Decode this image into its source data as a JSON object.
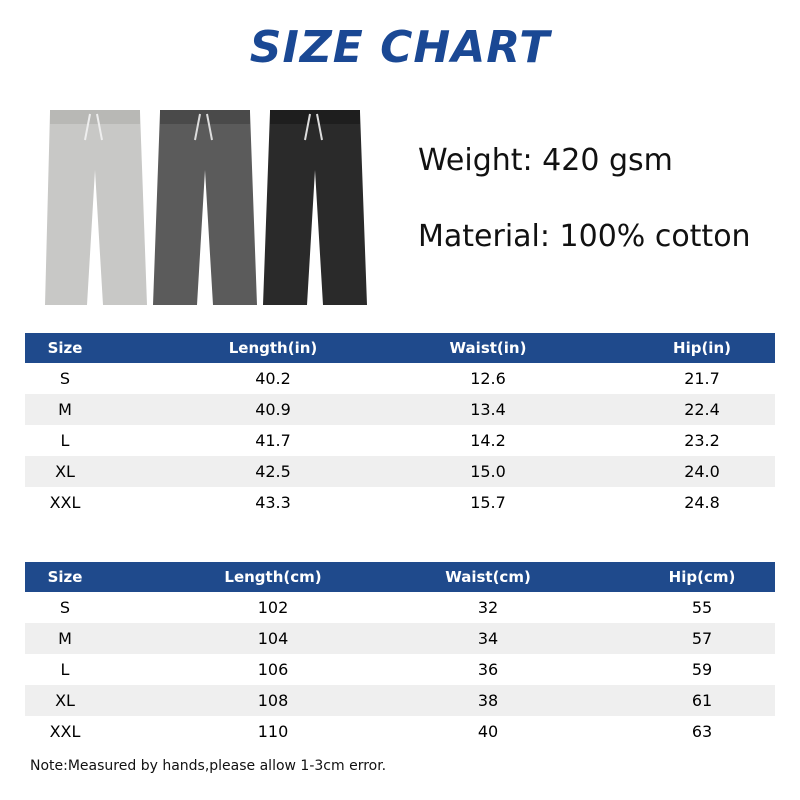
{
  "title": "SIZE CHART",
  "specs": [
    "Weight: 420 gsm",
    "Material: 100% cotton"
  ],
  "tables": [
    {
      "header": [
        "Size",
        "Length(in)",
        "Waist(in)",
        "Hip(in)"
      ],
      "rows": [
        [
          "S",
          "40.2",
          "12.6",
          "21.7"
        ],
        [
          "M",
          "40.9",
          "13.4",
          "22.4"
        ],
        [
          "L",
          "41.7",
          "14.2",
          "23.2"
        ],
        [
          "XL",
          "42.5",
          "15.0",
          "24.0"
        ],
        [
          "XXL",
          "43.3",
          "15.7",
          "24.8"
        ]
      ]
    },
    {
      "header": [
        "Size",
        "Length(cm)",
        "Waist(cm)",
        "Hip(cm)"
      ],
      "rows": [
        [
          "S",
          "102",
          "32",
          "55"
        ],
        [
          "M",
          "104",
          "34",
          "57"
        ],
        [
          "L",
          "106",
          "36",
          "59"
        ],
        [
          "XL",
          "108",
          "38",
          "61"
        ],
        [
          "XXL",
          "110",
          "40",
          "63"
        ]
      ]
    }
  ],
  "note": "Note:Measured by hands,please allow 1-3cm error."
}
